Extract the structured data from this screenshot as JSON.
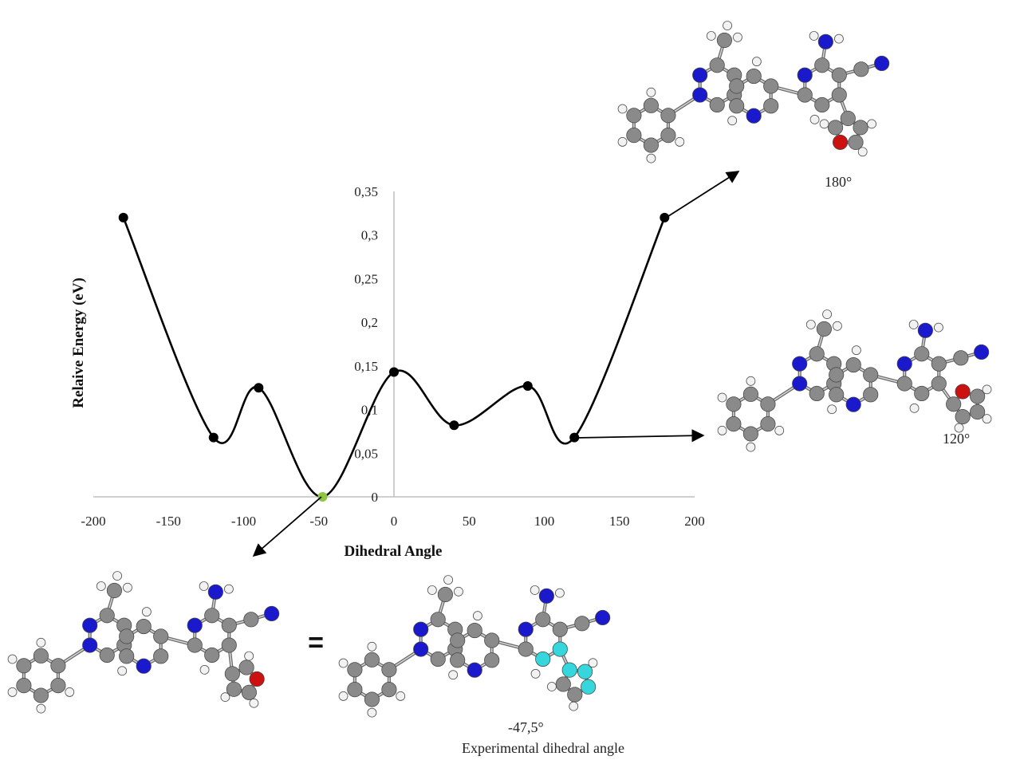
{
  "chart_data": {
    "type": "line",
    "title": "",
    "xlabel": "Dihedral Angle",
    "ylabel": "Relaive Energy (eV)",
    "xlim": [
      -200,
      200
    ],
    "ylim": [
      0,
      0.35
    ],
    "x_ticks": [
      -200,
      -150,
      -100,
      -50,
      0,
      50,
      100,
      150,
      200
    ],
    "x_tick_labels": [
      "-200",
      "-150",
      "-100",
      "-50",
      "0",
      "50",
      "100",
      "150",
      "200"
    ],
    "y_ticks": [
      0,
      0.05,
      0.1,
      0.15,
      0.2,
      0.25,
      0.3,
      0.35
    ],
    "y_tick_labels": [
      "0",
      "0,05",
      "0,1",
      "0,15",
      "0,2",
      "0,25",
      "0,3",
      "0,35"
    ],
    "grid": false,
    "legend": "none",
    "series": [
      {
        "x": [
          -180,
          -120,
          -90,
          -47.5,
          0,
          40,
          89,
          120,
          180
        ],
        "y": [
          0.32,
          0.068,
          0.125,
          0.0,
          0.143,
          0.082,
          0.127,
          0.068,
          0.32
        ],
        "smooth": true,
        "color": "#000000"
      }
    ],
    "highlight_point": {
      "x": -47.5,
      "y": 0.0,
      "color": "#8dc63f"
    },
    "annotations": {
      "angle_180": "180°",
      "angle_120": "120°",
      "angle_exp": "-47,5°",
      "exp_caption": "Experimental dihedral angle",
      "equals": "="
    }
  },
  "colors": {
    "carbon": "#8a8a8a",
    "nitrogen": "#1a1acc",
    "oxygen": "#cc1111",
    "hydrogen": "#f2f2f2",
    "highlight": "#35d6dc",
    "curve": "#000000",
    "axis": "#bfbfbf"
  },
  "molecules": [
    {
      "id": "mol-180",
      "caption": "180°"
    },
    {
      "id": "mol-120",
      "caption": "120°"
    },
    {
      "id": "mol-min",
      "caption": ""
    },
    {
      "id": "mol-exp",
      "caption": "-47,5°"
    }
  ]
}
